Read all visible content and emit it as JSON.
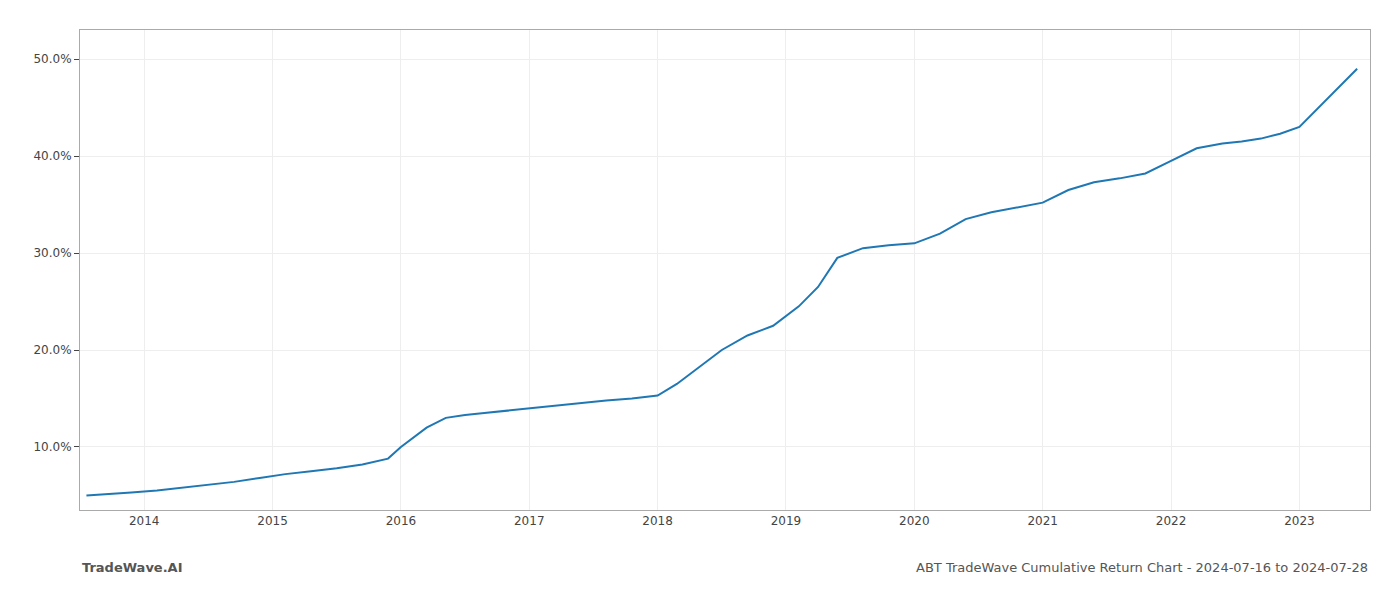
{
  "chart_data": {
    "type": "line",
    "x": [
      2013.55,
      2013.7,
      2013.9,
      2014.1,
      2014.3,
      2014.5,
      2014.7,
      2014.9,
      2015.1,
      2015.3,
      2015.5,
      2015.7,
      2015.9,
      2016.0,
      2016.1,
      2016.2,
      2016.35,
      2016.5,
      2016.65,
      2016.8,
      2017.0,
      2017.2,
      2017.4,
      2017.6,
      2017.8,
      2018.0,
      2018.15,
      2018.3,
      2018.5,
      2018.7,
      2018.9,
      2019.1,
      2019.25,
      2019.4,
      2019.6,
      2019.8,
      2020.0,
      2020.2,
      2020.4,
      2020.6,
      2020.8,
      2021.0,
      2021.2,
      2021.4,
      2021.6,
      2021.8,
      2022.0,
      2022.2,
      2022.4,
      2022.55,
      2022.7,
      2022.85,
      2023.0,
      2023.15,
      2023.3,
      2023.45
    ],
    "values": [
      5.0,
      5.1,
      5.3,
      5.5,
      5.8,
      6.1,
      6.4,
      6.8,
      7.2,
      7.5,
      7.8,
      8.2,
      8.8,
      10.0,
      11.0,
      12.0,
      13.0,
      13.3,
      13.5,
      13.7,
      14.0,
      14.3,
      14.5,
      14.8,
      15.0,
      15.3,
      16.5,
      18.0,
      20.0,
      21.5,
      22.5,
      24.5,
      26.5,
      29.5,
      30.5,
      30.8,
      31.0,
      32.0,
      33.5,
      34.2,
      34.7,
      35.2,
      36.5,
      37.3,
      37.7,
      38.2,
      39.5,
      40.8,
      41.3,
      41.5,
      41.8,
      42.3,
      43.0,
      45.0,
      47.0,
      49.0
    ],
    "color": "#1f77b4",
    "xlim": [
      2013.5,
      2023.55
    ],
    "xticks": [
      2014,
      2015,
      2016,
      2017,
      2018,
      2019,
      2020,
      2021,
      2022,
      2023
    ],
    "ylim": [
      3.5,
      53.0
    ],
    "yticks": [
      {
        "value": 10.0,
        "label": "10.0%"
      },
      {
        "value": 20.0,
        "label": "20.0%"
      },
      {
        "value": 30.0,
        "label": "30.0%"
      },
      {
        "value": 40.0,
        "label": "40.0%"
      },
      {
        "value": 50.0,
        "label": "50.0%"
      }
    ],
    "grid": true,
    "annotations": [
      "TradeWave.AI",
      "ABT TradeWave Cumulative Return Chart - 2024-07-16 to 2024-07-28"
    ]
  }
}
